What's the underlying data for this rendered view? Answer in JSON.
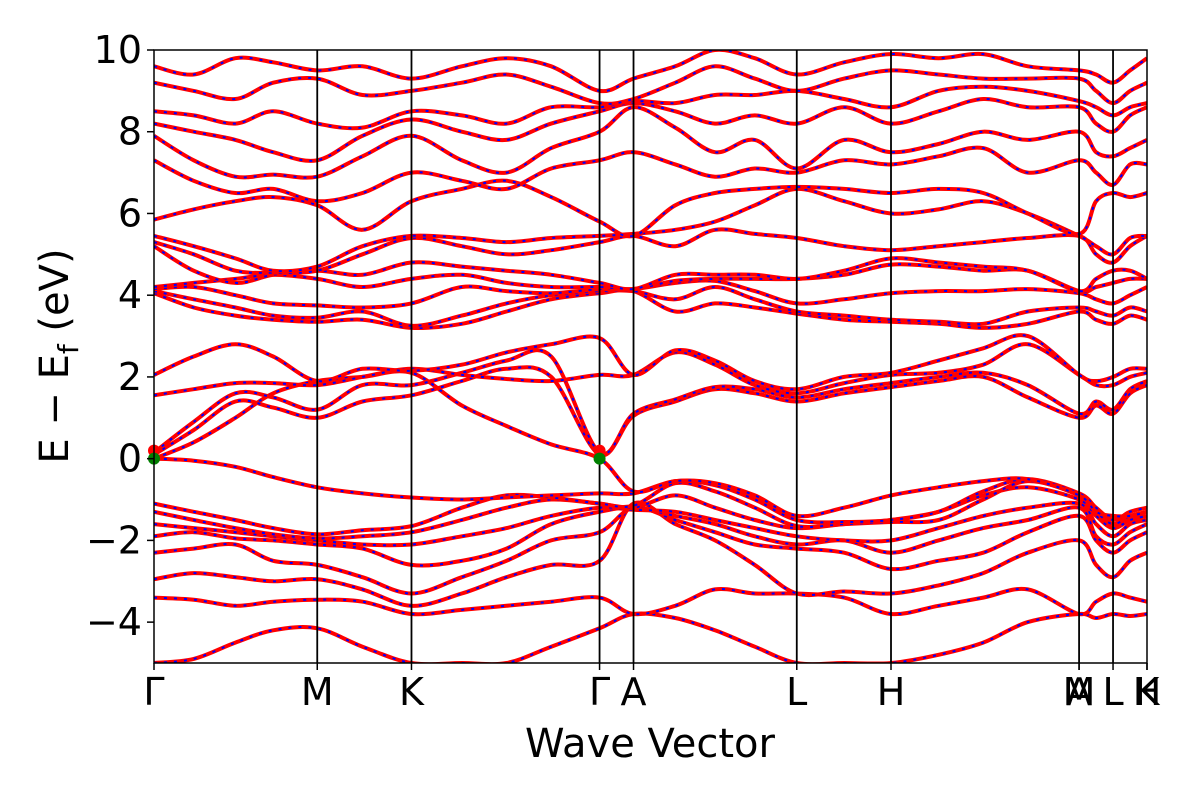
{
  "chart_data": {
    "type": "line",
    "xlabel": "Wave Vector",
    "ylabel": "E − E",
    "ylabel_subscript": "f",
    "ylabel_unit": " (eV)",
    "ylim": [
      -5,
      10
    ],
    "yticks": [
      -4,
      -2,
      0,
      2,
      4,
      6,
      8,
      10
    ],
    "ytick_labels": [
      "−4",
      "−2",
      "0",
      "2",
      "4",
      "6",
      "8",
      "10"
    ],
    "grid": false,
    "legend": "none",
    "colors": {
      "band_solid": "#ff0000",
      "band_dashed": "#0000ff",
      "vertical_lines": "#000000",
      "markers": "#008000"
    },
    "kpoints": [
      {
        "label": "Γ",
        "pos": 0.0
      },
      {
        "label": "M",
        "pos": 0.1644
      },
      {
        "label": "K",
        "pos": 0.2593
      },
      {
        "label": "Γ",
        "pos": 0.4487
      },
      {
        "label": "A",
        "pos": 0.4829
      },
      {
        "label": "L",
        "pos": 0.6473
      },
      {
        "label": "H",
        "pos": 0.7422
      },
      {
        "label": "A",
        "pos": 0.9316
      },
      {
        "label": "M",
        "pos": 0.9316
      },
      {
        "label": "L",
        "pos": 0.9658
      },
      {
        "label": "K",
        "pos": 1.0
      },
      {
        "label": "H",
        "pos": 1.0
      }
    ],
    "x": [
      0.0,
      0.04,
      0.082,
      0.12,
      0.1644,
      0.21,
      0.2593,
      0.31,
      0.355,
      0.4,
      0.4487,
      0.4829,
      0.525,
      0.565,
      0.605,
      0.6473,
      0.695,
      0.7422,
      0.79,
      0.835,
      0.88,
      0.9316,
      0.9487,
      0.9658,
      0.983,
      1.0
    ],
    "series": [
      {
        "values": [
          -5.0,
          -4.9,
          -4.5,
          -4.2,
          -4.15,
          -4.6,
          -5.0,
          -5.0,
          -5.0,
          -4.6,
          -4.15,
          -3.8,
          -3.9,
          -4.2,
          -4.6,
          -5.0,
          -5.0,
          -5.0,
          -4.8,
          -4.5,
          -4.0,
          -3.8,
          -3.9,
          -3.8,
          -3.85,
          -3.8
        ]
      },
      {
        "values": [
          -3.4,
          -3.45,
          -3.6,
          -3.5,
          -3.45,
          -3.5,
          -3.8,
          -3.7,
          -3.6,
          -3.5,
          -3.4,
          -3.8,
          -3.6,
          -3.2,
          -3.3,
          -3.3,
          -3.4,
          -3.8,
          -3.6,
          -3.4,
          -3.2,
          -3.8,
          -3.5,
          -3.3,
          -3.4,
          -3.5
        ]
      },
      {
        "values": [
          -2.95,
          -2.8,
          -2.9,
          -3.0,
          -2.95,
          -3.2,
          -3.6,
          -3.3,
          -2.9,
          -2.6,
          -2.5,
          -1.1,
          -1.6,
          -2.0,
          -2.6,
          -3.3,
          -3.25,
          -3.3,
          -3.1,
          -2.8,
          -2.3,
          -2.0,
          -2.6,
          -2.9,
          -2.5,
          -2.3
        ]
      },
      {
        "values": [
          -2.3,
          -2.2,
          -2.1,
          -2.5,
          -2.6,
          -2.9,
          -3.3,
          -2.9,
          -2.5,
          -2.0,
          -1.8,
          -1.2,
          -1.5,
          -1.8,
          -2.1,
          -2.2,
          -2.3,
          -2.7,
          -2.5,
          -2.3,
          -1.8,
          -1.4,
          -2.0,
          -2.3,
          -2.0,
          -1.8
        ]
      },
      {
        "values": [
          -1.9,
          -1.8,
          -1.95,
          -2.0,
          -2.1,
          -2.2,
          -2.6,
          -2.5,
          -2.2,
          -1.6,
          -1.3,
          -1.2,
          -1.4,
          -1.6,
          -1.9,
          -2.1,
          -2.0,
          -2.3,
          -2.0,
          -1.7,
          -1.5,
          -1.2,
          -1.9,
          -2.1,
          -1.8,
          -1.6
        ]
      },
      {
        "values": [
          -1.6,
          -1.7,
          -1.8,
          -1.9,
          -2.0,
          -2.1,
          -2.1,
          -1.9,
          -1.7,
          -1.4,
          -1.2,
          -1.25,
          -1.3,
          -1.5,
          -1.7,
          -1.9,
          -2.0,
          -2.0,
          -1.7,
          -1.4,
          -1.2,
          -1.1,
          -1.6,
          -1.9,
          -1.6,
          -1.5
        ]
      },
      {
        "values": [
          -1.3,
          -1.5,
          -1.7,
          -1.85,
          -1.95,
          -1.9,
          -1.8,
          -1.5,
          -1.2,
          -1.0,
          -1.1,
          -1.2,
          -0.9,
          -1.2,
          -1.5,
          -1.7,
          -1.6,
          -1.5,
          -1.3,
          -0.9,
          -0.7,
          -1.0,
          -1.4,
          -1.7,
          -1.5,
          -1.4
        ]
      },
      {
        "values": [
          -1.1,
          -1.3,
          -1.5,
          -1.7,
          -1.85,
          -1.75,
          -1.65,
          -1.2,
          -0.9,
          -0.95,
          -1.1,
          -1.15,
          -0.6,
          -0.8,
          -1.2,
          -1.65,
          -1.6,
          -1.55,
          -1.5,
          -1.0,
          -0.55,
          -0.9,
          -1.3,
          -1.6,
          -1.4,
          -1.3
        ]
      },
      {
        "values": [
          0.0,
          -0.05,
          -0.2,
          -0.45,
          -0.7,
          -0.85,
          -0.95,
          -1.0,
          -0.95,
          -0.9,
          -0.85,
          -0.85,
          -0.55,
          -0.65,
          -1.0,
          -1.5,
          -1.55,
          -1.5,
          -1.3,
          -0.8,
          -0.5,
          -0.85,
          -1.2,
          -1.5,
          -1.3,
          -1.2
        ]
      },
      {
        "values": [
          0.0,
          0.4,
          1.0,
          1.6,
          1.9,
          2.0,
          2.1,
          1.3,
          0.8,
          0.35,
          0.0,
          -0.8,
          -0.55,
          -0.6,
          -0.9,
          -1.4,
          -1.2,
          -0.9,
          -0.7,
          -0.55,
          -0.5,
          -0.9,
          -1.3,
          -1.4,
          -1.4,
          -1.3
        ]
      },
      {
        "values": [
          0.1,
          0.7,
          1.4,
          1.25,
          1.0,
          1.4,
          1.55,
          1.9,
          2.2,
          2.0,
          0.1,
          1.05,
          1.4,
          1.7,
          1.6,
          1.4,
          1.6,
          1.75,
          1.9,
          2.0,
          1.5,
          1.0,
          1.3,
          1.1,
          1.6,
          1.8
        ]
      },
      {
        "values": [
          0.15,
          0.9,
          1.6,
          1.5,
          1.2,
          1.8,
          1.8,
          2.1,
          2.4,
          2.5,
          0.15,
          1.1,
          1.45,
          1.75,
          1.7,
          1.5,
          1.7,
          1.85,
          2.0,
          2.1,
          1.8,
          1.1,
          1.4,
          1.2,
          1.7,
          1.9
        ]
      },
      {
        "values": [
          1.55,
          1.7,
          1.85,
          1.85,
          1.8,
          2.0,
          2.2,
          2.05,
          1.95,
          1.9,
          2.05,
          2.05,
          2.6,
          2.3,
          1.8,
          1.6,
          1.85,
          2.05,
          2.1,
          2.3,
          2.8,
          2.05,
          1.8,
          1.8,
          2.0,
          2.1
        ]
      },
      {
        "values": [
          2.05,
          2.5,
          2.8,
          2.5,
          1.9,
          2.2,
          2.15,
          2.3,
          2.6,
          2.8,
          2.95,
          2.05,
          2.65,
          2.4,
          1.9,
          1.7,
          2.0,
          2.1,
          2.4,
          2.7,
          3.0,
          2.05,
          1.9,
          2.0,
          2.2,
          2.2
        ]
      },
      {
        "values": [
          4.05,
          3.7,
          3.5,
          3.4,
          3.35,
          3.4,
          3.2,
          3.3,
          3.6,
          3.9,
          4.05,
          4.1,
          3.6,
          3.8,
          3.7,
          3.55,
          3.4,
          3.35,
          3.3,
          3.2,
          3.3,
          3.6,
          3.4,
          3.3,
          3.5,
          3.4
        ]
      },
      {
        "values": [
          4.1,
          3.9,
          3.7,
          3.5,
          3.45,
          3.6,
          3.25,
          3.5,
          3.8,
          4.0,
          4.1,
          4.1,
          3.9,
          4.2,
          3.9,
          3.6,
          3.5,
          3.4,
          3.35,
          3.3,
          3.6,
          3.7,
          3.6,
          3.5,
          3.7,
          3.6
        ]
      },
      {
        "values": [
          4.15,
          4.2,
          4.0,
          3.8,
          3.75,
          3.7,
          3.8,
          4.2,
          4.1,
          4.05,
          4.15,
          4.15,
          4.3,
          4.35,
          4.1,
          3.8,
          3.9,
          4.05,
          4.1,
          4.1,
          4.15,
          4.05,
          3.9,
          3.8,
          4.0,
          4.2
        ]
      },
      {
        "values": [
          4.2,
          4.3,
          4.4,
          4.5,
          4.4,
          4.2,
          4.4,
          4.5,
          4.3,
          4.2,
          4.2,
          4.15,
          4.35,
          4.4,
          4.4,
          4.4,
          4.5,
          4.75,
          4.7,
          4.6,
          4.6,
          4.1,
          4.2,
          4.3,
          4.4,
          4.4
        ]
      },
      {
        "values": [
          5.2,
          4.6,
          4.3,
          4.5,
          4.6,
          4.5,
          4.8,
          4.7,
          4.6,
          4.5,
          4.3,
          4.15,
          4.5,
          4.5,
          4.5,
          4.4,
          4.6,
          4.9,
          4.8,
          4.7,
          4.6,
          4.1,
          4.4,
          4.6,
          4.6,
          4.4
        ]
      },
      {
        "values": [
          5.3,
          5.0,
          4.6,
          4.55,
          4.6,
          5.0,
          5.4,
          5.2,
          5.0,
          5.1,
          5.3,
          5.45,
          5.2,
          5.6,
          5.5,
          5.4,
          5.2,
          5.1,
          5.2,
          5.3,
          5.4,
          5.45,
          5.0,
          4.8,
          5.2,
          5.45
        ]
      },
      {
        "values": [
          5.45,
          5.2,
          4.9,
          4.6,
          4.7,
          5.2,
          5.45,
          5.4,
          5.3,
          5.4,
          5.45,
          5.5,
          5.6,
          5.8,
          6.2,
          6.6,
          6.3,
          6.0,
          6.1,
          6.3,
          6.0,
          5.45,
          5.2,
          5.0,
          5.4,
          5.45
        ]
      },
      {
        "values": [
          5.85,
          6.1,
          6.3,
          6.4,
          6.2,
          5.6,
          6.3,
          6.6,
          6.8,
          6.4,
          5.8,
          5.45,
          6.2,
          6.5,
          6.6,
          6.65,
          6.6,
          6.5,
          6.6,
          6.5,
          6.0,
          5.5,
          6.3,
          6.5,
          6.4,
          6.5
        ]
      },
      {
        "values": [
          7.3,
          6.8,
          6.5,
          6.6,
          6.3,
          6.5,
          7.0,
          6.8,
          6.6,
          7.1,
          7.3,
          7.5,
          7.2,
          6.9,
          7.1,
          7.0,
          7.3,
          7.2,
          7.4,
          7.6,
          7.0,
          7.3,
          7.0,
          6.7,
          7.2,
          7.2
        ]
      },
      {
        "values": [
          7.9,
          7.3,
          6.9,
          6.95,
          6.9,
          7.4,
          7.9,
          7.3,
          7.0,
          7.6,
          8.0,
          8.6,
          8.1,
          7.5,
          7.8,
          7.1,
          7.8,
          7.5,
          7.7,
          8.0,
          7.8,
          8.0,
          7.5,
          7.4,
          7.6,
          7.8
        ]
      },
      {
        "values": [
          8.2,
          8.0,
          7.8,
          7.5,
          7.3,
          7.9,
          8.3,
          8.0,
          7.8,
          8.2,
          8.5,
          8.7,
          8.5,
          8.2,
          8.4,
          8.2,
          8.6,
          8.2,
          8.5,
          8.8,
          8.6,
          8.6,
          8.2,
          8.0,
          8.4,
          8.6
        ]
      },
      {
        "values": [
          8.5,
          8.4,
          8.2,
          8.5,
          8.2,
          8.1,
          8.5,
          8.4,
          8.2,
          8.6,
          8.6,
          8.75,
          8.7,
          8.9,
          8.9,
          9.0,
          8.8,
          8.6,
          9.0,
          9.1,
          9.0,
          8.75,
          8.6,
          8.4,
          8.6,
          8.7
        ]
      },
      {
        "values": [
          9.2,
          9.0,
          8.8,
          9.2,
          9.3,
          8.9,
          9.0,
          9.2,
          9.4,
          9.1,
          8.7,
          8.8,
          9.2,
          9.6,
          9.3,
          9.0,
          9.3,
          9.5,
          9.4,
          9.3,
          9.3,
          9.3,
          9.0,
          8.7,
          9.0,
          9.2
        ]
      },
      {
        "values": [
          9.6,
          9.4,
          9.8,
          9.7,
          9.5,
          9.6,
          9.3,
          9.6,
          9.8,
          9.6,
          9.0,
          9.3,
          9.6,
          10.0,
          9.8,
          9.4,
          9.7,
          9.9,
          9.8,
          9.9,
          9.6,
          9.5,
          9.4,
          9.2,
          9.5,
          9.8
        ]
      }
    ],
    "markers": [
      {
        "x": 0.0,
        "y": 0.0
      },
      {
        "x": 0.4487,
        "y": 0.0
      }
    ]
  }
}
